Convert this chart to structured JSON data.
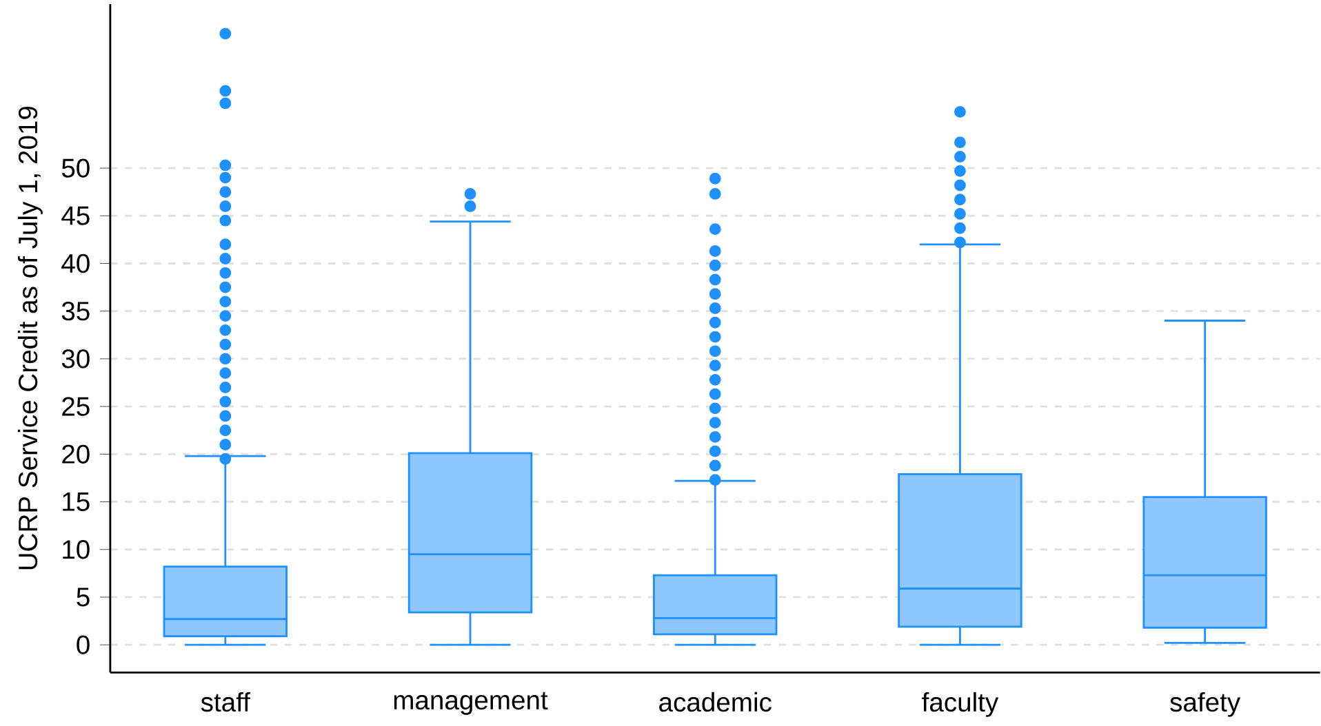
{
  "chart_data": {
    "type": "box",
    "ylabel": "UCRP Service Credit as of July 1, 2019",
    "categories": [
      "staff",
      "management",
      "academic",
      "faculty",
      "safety"
    ],
    "ylim": [
      -2.9,
      67.2
    ],
    "yticks": [
      0,
      5,
      10,
      15,
      20,
      25,
      30,
      35,
      40,
      45,
      50
    ],
    "grid": "y",
    "series": [
      {
        "color": "#1e90ff",
        "boxes": [
          {
            "low": 0,
            "q1": 0.9,
            "median": 2.7,
            "q3": 8.2,
            "high": 19.8,
            "outliers": [
              19.5,
              21,
              22.5,
              24,
              25.5,
              27,
              28.5,
              30,
              31.5,
              33,
              34.5,
              36,
              37.5,
              39,
              40.5,
              42,
              44.5,
              46,
              47.5,
              49,
              50.3,
              56.8,
              58.1,
              64.1
            ]
          },
          {
            "low": 0,
            "q1": 3.4,
            "median": 9.5,
            "q3": 20.1,
            "high": 44.4,
            "outliers": [
              46,
              47.3
            ]
          },
          {
            "low": 0,
            "q1": 1.1,
            "median": 2.8,
            "q3": 7.3,
            "high": 17.2,
            "outliers": [
              17.3,
              18.8,
              20.3,
              21.8,
              23.3,
              24.8,
              26.3,
              27.8,
              29.3,
              30.8,
              32.3,
              33.8,
              35.3,
              36.8,
              38.3,
              39.8,
              41.3,
              43.6,
              47.3,
              48.9
            ]
          },
          {
            "low": 0,
            "q1": 1.9,
            "median": 5.9,
            "q3": 17.9,
            "high": 42,
            "outliers": [
              42.2,
              43.7,
              45.2,
              46.7,
              48.2,
              49.7,
              51.2,
              52.7,
              55.9
            ]
          },
          {
            "low": 0.2,
            "q1": 1.8,
            "median": 7.3,
            "q3": 15.5,
            "high": 34
          }
        ]
      }
    ]
  }
}
